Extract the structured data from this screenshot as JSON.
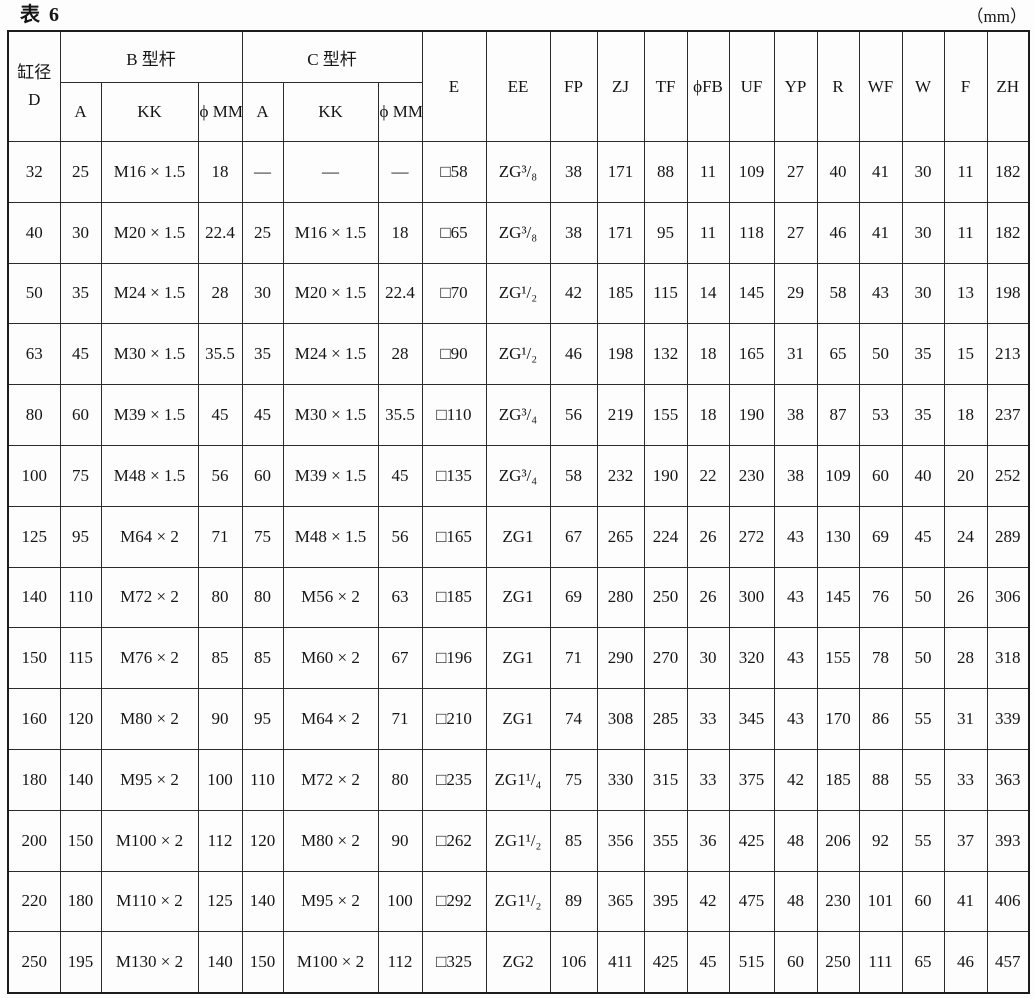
{
  "page": {
    "title": "表 6",
    "unit": "（mm）"
  },
  "table": {
    "header": {
      "d_top": "缸径",
      "d_bottom": "D",
      "b_rod": "B 型杆",
      "c_rod": "C 型杆",
      "sub": [
        "A",
        "KK",
        "ϕ MM",
        "A",
        "KK",
        "ϕ MM"
      ],
      "cols": [
        "E",
        "EE",
        "FP",
        "ZJ",
        "TF",
        "ϕFB",
        "UF",
        "YP",
        "R",
        "WF",
        "W",
        "F",
        "ZH"
      ]
    },
    "rows": [
      [
        "32",
        "25",
        "M16 × 1.5",
        "18",
        "—",
        "—",
        "—",
        "□58",
        "ZG³/₈",
        "38",
        "171",
        "88",
        "11",
        "109",
        "27",
        "40",
        "41",
        "30",
        "11",
        "182"
      ],
      [
        "40",
        "30",
        "M20 × 1.5",
        "22.4",
        "25",
        "M16 × 1.5",
        "18",
        "□65",
        "ZG³/₈",
        "38",
        "171",
        "95",
        "11",
        "118",
        "27",
        "46",
        "41",
        "30",
        "11",
        "182"
      ],
      [
        "50",
        "35",
        "M24 × 1.5",
        "28",
        "30",
        "M20 × 1.5",
        "22.4",
        "□70",
        "ZG¹/₂",
        "42",
        "185",
        "115",
        "14",
        "145",
        "29",
        "58",
        "43",
        "30",
        "13",
        "198"
      ],
      [
        "63",
        "45",
        "M30 × 1.5",
        "35.5",
        "35",
        "M24 × 1.5",
        "28",
        "□90",
        "ZG¹/₂",
        "46",
        "198",
        "132",
        "18",
        "165",
        "31",
        "65",
        "50",
        "35",
        "15",
        "213"
      ],
      [
        "80",
        "60",
        "M39 × 1.5",
        "45",
        "45",
        "M30 × 1.5",
        "35.5",
        "□110",
        "ZG³/₄",
        "56",
        "219",
        "155",
        "18",
        "190",
        "38",
        "87",
        "53",
        "35",
        "18",
        "237"
      ],
      [
        "100",
        "75",
        "M48 × 1.5",
        "56",
        "60",
        "M39 × 1.5",
        "45",
        "□135",
        "ZG³/₄",
        "58",
        "232",
        "190",
        "22",
        "230",
        "38",
        "109",
        "60",
        "40",
        "20",
        "252"
      ],
      [
        "125",
        "95",
        "M64 × 2",
        "71",
        "75",
        "M48 × 1.5",
        "56",
        "□165",
        "ZG1",
        "67",
        "265",
        "224",
        "26",
        "272",
        "43",
        "130",
        "69",
        "45",
        "24",
        "289"
      ],
      [
        "140",
        "110",
        "M72 × 2",
        "80",
        "80",
        "M56 × 2",
        "63",
        "□185",
        "ZG1",
        "69",
        "280",
        "250",
        "26",
        "300",
        "43",
        "145",
        "76",
        "50",
        "26",
        "306"
      ],
      [
        "150",
        "115",
        "M76 × 2",
        "85",
        "85",
        "M60 × 2",
        "67",
        "□196",
        "ZG1",
        "71",
        "290",
        "270",
        "30",
        "320",
        "43",
        "155",
        "78",
        "50",
        "28",
        "318"
      ],
      [
        "160",
        "120",
        "M80 × 2",
        "90",
        "95",
        "M64 × 2",
        "71",
        "□210",
        "ZG1",
        "74",
        "308",
        "285",
        "33",
        "345",
        "43",
        "170",
        "86",
        "55",
        "31",
        "339"
      ],
      [
        "180",
        "140",
        "M95 × 2",
        "100",
        "110",
        "M72 × 2",
        "80",
        "□235",
        "ZG1¹/₄",
        "75",
        "330",
        "315",
        "33",
        "375",
        "42",
        "185",
        "88",
        "55",
        "33",
        "363"
      ],
      [
        "200",
        "150",
        "M100 × 2",
        "112",
        "120",
        "M80 × 2",
        "90",
        "□262",
        "ZG1¹/₂",
        "85",
        "356",
        "355",
        "36",
        "425",
        "48",
        "206",
        "92",
        "55",
        "37",
        "393"
      ],
      [
        "220",
        "180",
        "M110 × 2",
        "125",
        "140",
        "M95 × 2",
        "100",
        "□292",
        "ZG1¹/₂",
        "89",
        "365",
        "395",
        "42",
        "475",
        "48",
        "230",
        "101",
        "60",
        "41",
        "406"
      ],
      [
        "250",
        "195",
        "M130 × 2",
        "140",
        "150",
        "M100 × 2",
        "112",
        "□325",
        "ZG2",
        "106",
        "411",
        "425",
        "45",
        "515",
        "60",
        "250",
        "111",
        "65",
        "46",
        "457"
      ]
    ]
  }
}
